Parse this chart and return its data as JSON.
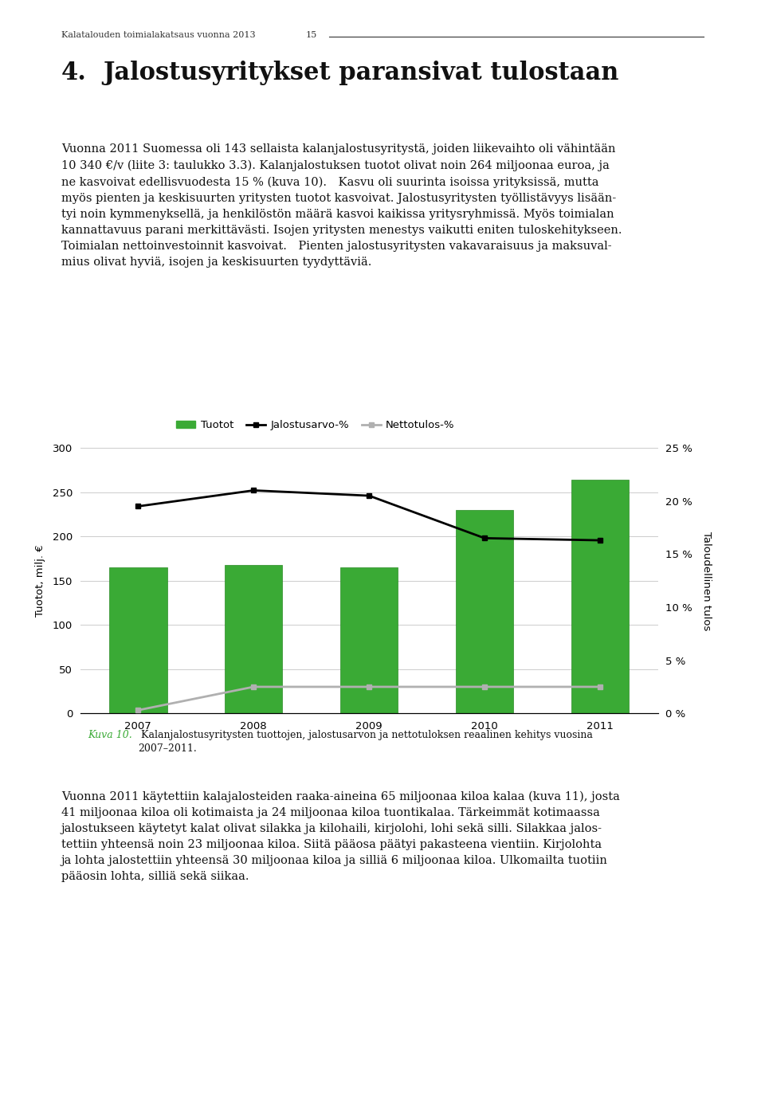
{
  "years": [
    2007,
    2008,
    2009,
    2010,
    2011
  ],
  "tuotot": [
    165,
    168,
    165,
    230,
    264
  ],
  "jalostusarvo_pct": [
    19.5,
    21.0,
    20.5,
    16.5,
    16.3
  ],
  "nettotulos_pct": [
    0.3,
    2.5,
    2.5,
    2.5,
    2.5
  ],
  "bar_color": "#3aaa35",
  "bar_edge_color": "#2a8a25",
  "jalostusarvo_color": "#000000",
  "nettotulos_color": "#b0b0b0",
  "ylabel_left": "Tuotot, milj. €",
  "ylabel_right": "Taloudellinen tulos",
  "ylim_left": [
    0,
    300
  ],
  "ylim_right": [
    0,
    25
  ],
  "yticks_left": [
    0,
    50,
    100,
    150,
    200,
    250,
    300
  ],
  "yticks_right": [
    0,
    5,
    10,
    15,
    20,
    25
  ],
  "ytick_labels_right": [
    "0 %",
    "5 %",
    "10 %",
    "15 %",
    "20 %",
    "25 %"
  ],
  "legend_labels": [
    "Tuotot",
    "Jalostusarvo-%",
    "Nettotulos-%"
  ],
  "background_color": "#ffffff",
  "grid_color": "#cccccc",
  "figure_width": 9.6,
  "figure_height": 13.88,
  "header_text": "Kalatalouden toimialakatsaus vuonna 2013",
  "header_page": "15",
  "chapter_num": "4.",
  "chapter_title": "Jalostusyritykset paransivat tulostaan",
  "body_text1": "Vuonna 2011 Suomessa oli 143 sellaista kalanjalostusyritystä, joiden liikevaihto oli vähintään\n10 340 €/v (liite 3: taulukko 3.3). Kalanjalostuksen tuotot olivat noin 264 miljoonaa euroa, ja\nne kasvoivat edellisvuodesta 15 % (kuva 10). Kasvu oli suurinta isoissa yrityksissä, mutta\nmyös pienten ja keskisuurten yritysten tuotot kasvoivat. Jalostusyritysten työllistävyys lisään-\ntyi noin kymmenyksellä, ja henkilöstön määrä kasvoi kaikissa yritysryhmissä. Myös toimialan\nkannattavuus parani merkittävästi. Isojen yritysten menestys vaikutti eniten tuloskehitykseen.\nToimialan nettoinvestoinnit kasvoivat. Pienten jalostusyritysten vakavaraisuus ja maksuval-\nmius olivat hyviä, isojen ja keskisuurten tyydyttäviä.",
  "caption_label": "Kuva 10.",
  "caption_text": " Kalanjalostusyritysten tuottojen, jalostusarvon ja nettotuloksen reaalinen kehitys vuosina\n2007–2011.",
  "caption_color": "#3aaa35",
  "body_text2": "Vuonna 2011 käytettiin kalajalosteiden raaka-aineina 65 miljoonaa kiloa kalaa (kuva 11), josta\n41 miljoonaa kiloa oli kotimaista ja 24 miljoonaa kiloa tuontikalaa. Tärkeimmät kotimaassa\njalostukseen käytetyt kalat olivat silakka ja kilohaili, kirjolohi, lohi sekä silli. Silakkaa jalos-\ntettiin yhteensä noin 23 miljoonaa kiloa. Siitä pääosa päätyi pakasteena vientiin. Kirjolohta\nja lohta jalostettiin yhteensä 30 miljoonaa kiloa ja silliä 6 miljoonaa kiloa. Ulkomailta tuotiin\npääosin lohta, silliä sekä siikaa."
}
